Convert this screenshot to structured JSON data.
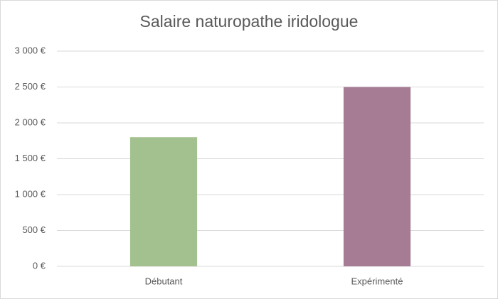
{
  "chart_data": {
    "type": "bar",
    "title": "Salaire naturopathe iridologue",
    "categories": [
      "Débutant",
      "Expérimenté"
    ],
    "values": [
      1800,
      2500
    ],
    "colors": [
      "#a3c18f",
      "#a67c94"
    ],
    "ylim": [
      0,
      3000
    ],
    "yticks": [
      {
        "value": 0,
        "label": "0 €"
      },
      {
        "value": 500,
        "label": "500 €"
      },
      {
        "value": 1000,
        "label": "1 000 €"
      },
      {
        "value": 1500,
        "label": "1 500 €"
      },
      {
        "value": 2000,
        "label": "2 000 €"
      },
      {
        "value": 2500,
        "label": "2 500 €"
      },
      {
        "value": 3000,
        "label": "3 000 €"
      }
    ],
    "grid": true
  }
}
